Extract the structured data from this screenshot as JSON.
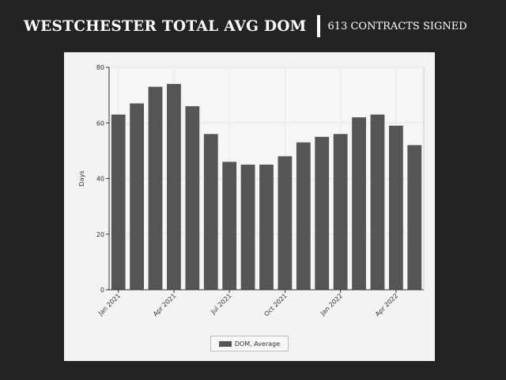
{
  "header": {
    "title": "WESTCHESTER TOTAL AVG DOM",
    "subtitle": "613 CONTRACTS SIGNED"
  },
  "colors": {
    "bar": "#555555",
    "background": "#232323",
    "panel": "#f3f3f3"
  },
  "chart_data": {
    "type": "bar",
    "title": "",
    "xlabel": "",
    "ylabel": "Days",
    "ylim": [
      0,
      80
    ],
    "yticks": [
      0,
      20,
      40,
      60,
      80
    ],
    "grid": true,
    "legend_position": "bottom",
    "categories": [
      "Jan 2021",
      "Feb 2021",
      "Mar 2021",
      "Apr 2021",
      "May 2021",
      "Jun 2021",
      "Jul 2021",
      "Aug 2021",
      "Sep 2021",
      "Oct 2021",
      "Nov 2021",
      "Dec 2021",
      "Jan 2022",
      "Feb 2022",
      "Mar 2022",
      "Apr 2022",
      "May 2022"
    ],
    "tick_labels": [
      {
        "index": 0,
        "label": "Jan 2021"
      },
      {
        "index": 3,
        "label": "Apr 2021"
      },
      {
        "index": 6,
        "label": "Jul 2021"
      },
      {
        "index": 9,
        "label": "Oct 2021"
      },
      {
        "index": 12,
        "label": "Jan 2022"
      },
      {
        "index": 15,
        "label": "Apr 2022"
      }
    ],
    "series": [
      {
        "name": "DOM, Average",
        "values": [
          63,
          67,
          73,
          74,
          66,
          56,
          46,
          45,
          45,
          48,
          53,
          55,
          56,
          62,
          63,
          59,
          52
        ]
      }
    ]
  }
}
